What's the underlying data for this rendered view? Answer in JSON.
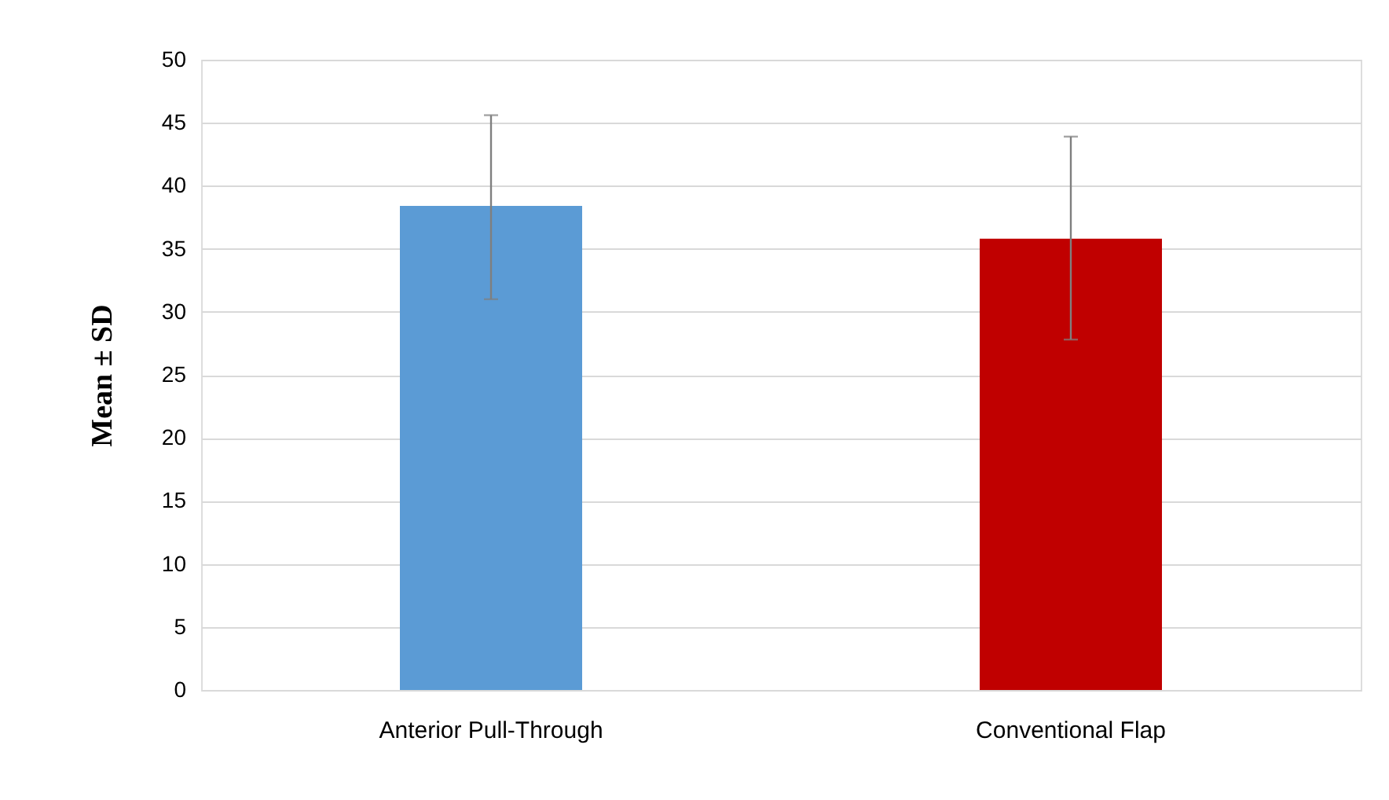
{
  "chart_data": {
    "type": "bar",
    "ylabel": "Mean ± SD",
    "categories": [
      "Anterior Pull-Through",
      "Conventional Flap"
    ],
    "values": [
      38.4,
      35.8
    ],
    "colors": [
      "#5b9bd5",
      "#c00000"
    ],
    "errors": [
      [
        31.0,
        45.6
      ],
      [
        27.8,
        43.9
      ]
    ],
    "ylim": [
      0,
      50
    ],
    "yticks": [
      0,
      5,
      10,
      15,
      20,
      25,
      30,
      35,
      40,
      45,
      50
    ],
    "grid": "y"
  }
}
